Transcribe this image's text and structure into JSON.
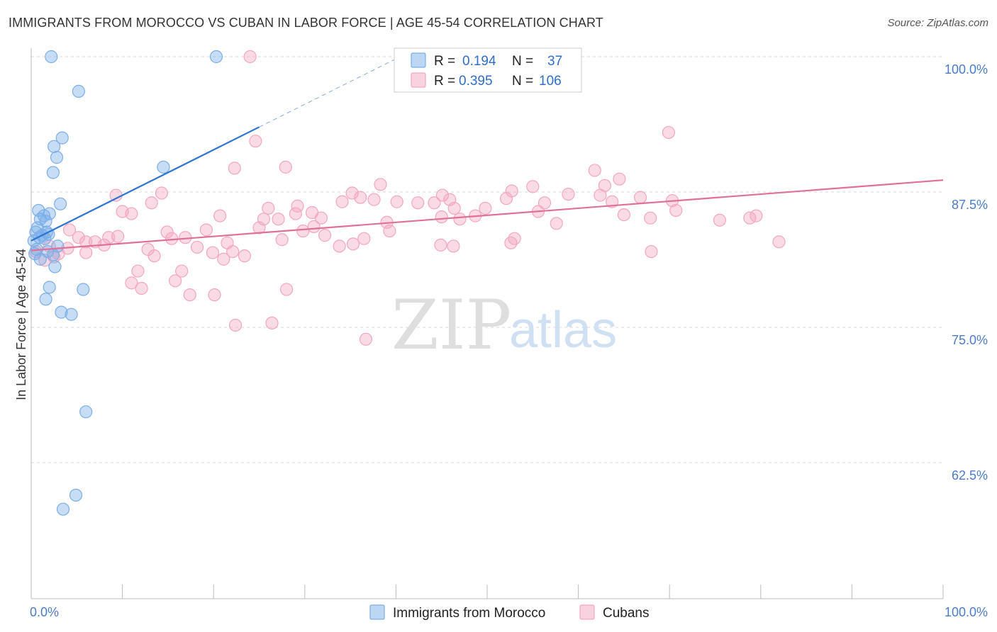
{
  "title": "IMMIGRANTS FROM MOROCCO VS CUBAN IN LABOR FORCE | AGE 45-54 CORRELATION CHART",
  "source": "Source: ZipAtlas.com",
  "watermark": {
    "zip": "ZIP",
    "atlas": "atlas"
  },
  "chart_data": {
    "type": "scatter",
    "ylabel": "In Labor Force | Age 45-54",
    "xlim": [
      0,
      100
    ],
    "ylim": [
      50,
      103
    ],
    "x_tick_labels": [
      {
        "value": 0,
        "label": "0.0%"
      },
      {
        "value": 100,
        "label": "100.0%"
      }
    ],
    "x_minor_ticks": [
      0,
      10,
      20,
      30,
      40,
      50,
      60,
      70,
      80,
      90,
      100
    ],
    "y_ticks": [
      {
        "value": 100,
        "label": "100.0%"
      },
      {
        "value": 87.5,
        "label": "87.5%"
      },
      {
        "value": 75,
        "label": "75.0%"
      },
      {
        "value": 62.5,
        "label": "62.5%"
      }
    ],
    "grid": "horizontal-dashed",
    "legend_position": "top-center",
    "series": [
      {
        "name": "Immigrants from Morocco",
        "color": "#7aaee8",
        "line_color": "#2d74d1",
        "R": "0.194",
        "N": "37",
        "trend": {
          "x0": 0,
          "y0": 83.0,
          "x1": 25,
          "y1": 93.5,
          "x_ext": 40,
          "y_ext": 99.8
        },
        "points": [
          [
            2.2,
            100
          ],
          [
            20.3,
            100
          ],
          [
            5.2,
            96.8
          ],
          [
            3.4,
            92.5
          ],
          [
            2.5,
            91.7
          ],
          [
            2.8,
            90.7
          ],
          [
            2.4,
            89.3
          ],
          [
            14.5,
            89.8
          ],
          [
            3.2,
            86.4
          ],
          [
            0.8,
            85.8
          ],
          [
            1.4,
            85.3
          ],
          [
            2.0,
            85.5
          ],
          [
            1.0,
            85.0
          ],
          [
            1.6,
            84.8
          ],
          [
            0.7,
            84.2
          ],
          [
            0.5,
            83.8
          ],
          [
            1.7,
            83.8
          ],
          [
            1.2,
            83.5
          ],
          [
            1.9,
            83.6
          ],
          [
            1.5,
            83.2
          ],
          [
            0.9,
            83.3
          ],
          [
            0.3,
            83.0
          ],
          [
            1.8,
            82.0
          ],
          [
            2.4,
            81.7
          ],
          [
            0.4,
            81.8
          ],
          [
            2.6,
            80.6
          ],
          [
            2.0,
            78.7
          ],
          [
            5.7,
            78.5
          ],
          [
            1.6,
            77.6
          ],
          [
            3.3,
            76.4
          ],
          [
            4.4,
            76.2
          ],
          [
            6.0,
            67.2
          ],
          [
            4.9,
            59.5
          ],
          [
            3.5,
            58.2
          ],
          [
            1.0,
            81.3
          ],
          [
            2.9,
            82.5
          ],
          [
            0.6,
            82.2
          ]
        ]
      },
      {
        "name": "Cubans",
        "color": "#f4a6bf",
        "line_color": "#e0709a",
        "R": "0.395",
        "N": "106",
        "trend": {
          "x0": 0,
          "y0": 82.1,
          "x1": 100,
          "y1": 88.6
        },
        "points": [
          [
            24.0,
            100
          ],
          [
            69.9,
            93.0
          ],
          [
            27.9,
            89.8
          ],
          [
            24.6,
            92.2
          ],
          [
            61.8,
            89.5
          ],
          [
            64.5,
            88.7
          ],
          [
            22.3,
            89.7
          ],
          [
            9.3,
            87.2
          ],
          [
            14.3,
            87.4
          ],
          [
            13.2,
            86.5
          ],
          [
            11.0,
            85.5
          ],
          [
            10.0,
            85.7
          ],
          [
            20.7,
            85.3
          ],
          [
            25.5,
            85.0
          ],
          [
            27.1,
            85.0
          ],
          [
            29.0,
            85.5
          ],
          [
            29.2,
            86.2
          ],
          [
            31.8,
            85.1
          ],
          [
            34.1,
            86.6
          ],
          [
            35.2,
            87.4
          ],
          [
            36.1,
            87.0
          ],
          [
            37.6,
            86.8
          ],
          [
            38.3,
            88.2
          ],
          [
            40.1,
            86.6
          ],
          [
            42.4,
            86.5
          ],
          [
            44.2,
            86.5
          ],
          [
            45.1,
            87.2
          ],
          [
            45.9,
            86.8
          ],
          [
            46.4,
            86.0
          ],
          [
            48.7,
            85.3
          ],
          [
            49.8,
            86.0
          ],
          [
            52.1,
            86.9
          ],
          [
            52.7,
            87.6
          ],
          [
            55.0,
            88.0
          ],
          [
            55.6,
            85.7
          ],
          [
            56.3,
            86.5
          ],
          [
            58.9,
            87.3
          ],
          [
            62.4,
            87.2
          ],
          [
            62.9,
            88.1
          ],
          [
            63.7,
            86.6
          ],
          [
            65.0,
            85.4
          ],
          [
            66.8,
            87.0
          ],
          [
            67.9,
            85.1
          ],
          [
            70.3,
            86.7
          ],
          [
            70.7,
            85.8
          ],
          [
            75.5,
            84.9
          ],
          [
            78.8,
            85.1
          ],
          [
            79.5,
            85.3
          ],
          [
            82.0,
            82.9
          ],
          [
            5.2,
            83.3
          ],
          [
            6.0,
            82.9
          ],
          [
            7.0,
            82.9
          ],
          [
            8.5,
            83.3
          ],
          [
            9.5,
            83.4
          ],
          [
            8.0,
            82.6
          ],
          [
            4.0,
            82.3
          ],
          [
            3.0,
            81.8
          ],
          [
            6.0,
            81.9
          ],
          [
            12.8,
            82.2
          ],
          [
            13.5,
            81.6
          ],
          [
            14.9,
            83.8
          ],
          [
            15.4,
            83.2
          ],
          [
            16.9,
            83.3
          ],
          [
            19.2,
            84.0
          ],
          [
            18.2,
            82.4
          ],
          [
            19.9,
            81.9
          ],
          [
            21.5,
            82.8
          ],
          [
            22.1,
            82.0
          ],
          [
            21.1,
            81.3
          ],
          [
            23.4,
            81.6
          ],
          [
            25.0,
            84.2
          ],
          [
            27.5,
            83.1
          ],
          [
            29.8,
            83.9
          ],
          [
            32.2,
            83.5
          ],
          [
            33.8,
            82.5
          ],
          [
            35.3,
            82.7
          ],
          [
            36.5,
            83.2
          ],
          [
            39.3,
            83.9
          ],
          [
            44.9,
            82.6
          ],
          [
            46.3,
            82.5
          ],
          [
            52.6,
            82.8
          ],
          [
            53.0,
            83.2
          ],
          [
            57.6,
            84.6
          ],
          [
            68.0,
            82.0
          ],
          [
            11.7,
            80.2
          ],
          [
            11.0,
            79.1
          ],
          [
            12.1,
            78.6
          ],
          [
            15.8,
            79.3
          ],
          [
            16.5,
            80.2
          ],
          [
            17.4,
            78.0
          ],
          [
            20.1,
            78.0
          ],
          [
            28.0,
            78.5
          ],
          [
            22.4,
            75.2
          ],
          [
            26.4,
            75.4
          ],
          [
            36.7,
            73.9
          ],
          [
            2.0,
            82.5
          ],
          [
            1.5,
            81.2
          ],
          [
            2.5,
            81.5
          ],
          [
            0.5,
            82.0
          ],
          [
            4.2,
            84.0
          ],
          [
            31.0,
            84.3
          ],
          [
            39.0,
            84.7
          ],
          [
            45.0,
            85.2
          ],
          [
            26.0,
            86.0
          ],
          [
            47.0,
            85.0
          ],
          [
            30.8,
            85.6
          ]
        ]
      }
    ]
  }
}
